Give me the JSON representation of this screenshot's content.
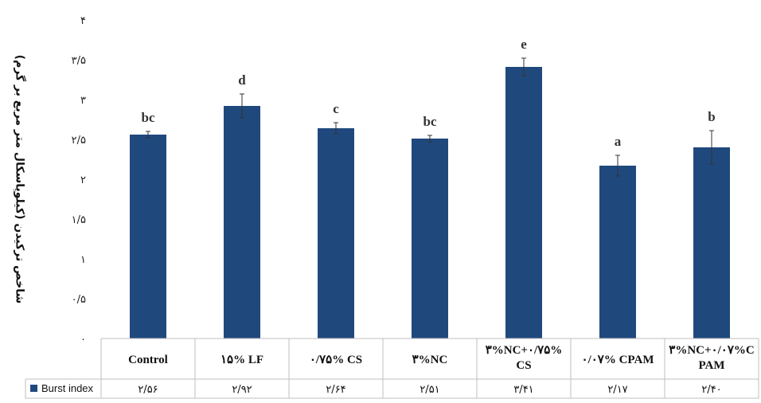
{
  "chart_data": {
    "type": "bar",
    "ylabel": "شاخص ترکیدن (کیلوپاسکال متر مربع بر گرم)",
    "ylim": [
      0,
      4
    ],
    "yticks": [
      {
        "value": 0,
        "label": "۰"
      },
      {
        "value": 0.5,
        "label": "۰/۵"
      },
      {
        "value": 1,
        "label": "۱"
      },
      {
        "value": 1.5,
        "label": "۱/۵"
      },
      {
        "value": 2,
        "label": "۲"
      },
      {
        "value": 2.5,
        "label": "۲/۵"
      },
      {
        "value": 3,
        "label": "۳"
      },
      {
        "value": 3.5,
        "label": "۳/۵"
      },
      {
        "value": 4,
        "label": "۴"
      }
    ],
    "grid": false,
    "bar_color": "#1f497d",
    "categories": [
      {
        "lines": [
          "Control"
        ]
      },
      {
        "lines": [
          "۱۵% LF"
        ]
      },
      {
        "lines": [
          "۰/۷۵% CS"
        ]
      },
      {
        "lines": [
          "۳%NC"
        ]
      },
      {
        "lines": [
          "۳%NC+۰/۷۵%",
          "CS"
        ]
      },
      {
        "lines": [
          "۰/۰۷% CPAM"
        ]
      },
      {
        "lines": [
          "۳%NC+۰/۰۷%C",
          "PAM"
        ]
      }
    ],
    "series": [
      {
        "name": "Burst index",
        "values": [
          2.56,
          2.92,
          2.64,
          2.51,
          3.41,
          2.17,
          2.4
        ],
        "errors": [
          0.04,
          0.15,
          0.07,
          0.04,
          0.11,
          0.13,
          0.21
        ],
        "letters": [
          "bc",
          "d",
          "c",
          "bc",
          "e",
          "a",
          "b"
        ],
        "table_values": [
          "۲/۵۶",
          "۲/۹۲",
          "۲/۶۴",
          "۲/۵۱",
          "۳/۴۱",
          "۲/۱۷",
          "۲/۴۰"
        ]
      }
    ],
    "legend": "data-table"
  }
}
